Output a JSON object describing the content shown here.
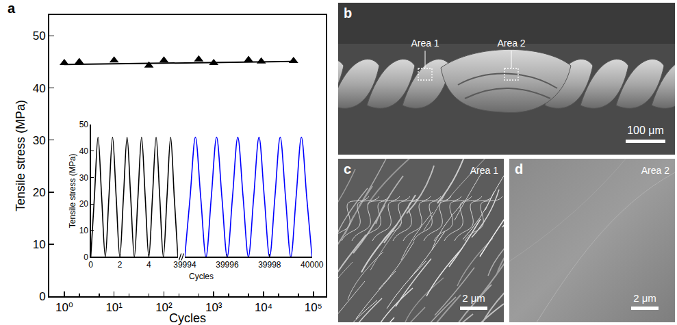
{
  "chart_data": [
    {
      "type": "scatter",
      "label": "a",
      "xlabel": "Cycles",
      "ylabel": "Tensile stress (MPa)",
      "log": "x",
      "grid": false,
      "xlim": [
        0.5,
        178000
      ],
      "xticks": [
        {
          "value": 1,
          "label": "10⁰"
        },
        {
          "value": 10,
          "label": "10¹"
        },
        {
          "value": 100,
          "label": "10²"
        },
        {
          "value": 1000,
          "label": "10³"
        },
        {
          "value": 10000,
          "label": "10⁴"
        },
        {
          "value": 100000,
          "label": "10⁵"
        }
      ],
      "ylim": [
        0,
        54
      ],
      "yticks": [
        0,
        10,
        20,
        30,
        40,
        50
      ],
      "series": [
        {
          "type": "scatter",
          "marker": "triangle-up",
          "color": "#000000",
          "x": [
            1,
            2,
            10,
            50,
            100,
            500,
            1000,
            5000,
            9000,
            40000
          ],
          "values": [
            44.8,
            45.0,
            45.3,
            44.3,
            45.3,
            45.5,
            44.8,
            45.4,
            45.1,
            45.2
          ]
        },
        {
          "type": "line",
          "line_style": "solid",
          "color": "#000000",
          "x": [
            1,
            40000
          ],
          "values": [
            44.5,
            45.1
          ]
        }
      ]
    },
    {
      "type": "line",
      "xlabel": "Cycles",
      "ylabel": "Tensile stress (MPa)",
      "grid": false,
      "xlim": [
        0,
        6
      ],
      "xticks": [
        0,
        2,
        4
      ],
      "x2lim": [
        39994,
        40000
      ],
      "x2ticks": [
        39994,
        39996,
        39998,
        40000
      ],
      "ylim": [
        0,
        50
      ],
      "yticks": [
        0,
        10,
        20,
        30,
        40,
        50
      ],
      "series": [
        {
          "type": "line",
          "line_style": "solid",
          "color": "#000000",
          "x": [
            0,
            0.25,
            0.5,
            0.75,
            1,
            1.25,
            1.5,
            1.75,
            2,
            2.25,
            2.5,
            2.75,
            3,
            3.25,
            3.5,
            3.75,
            4,
            4.25,
            4.5,
            4.75,
            5,
            5.25,
            5.5,
            5.75,
            6
          ],
          "values": [
            0,
            22.6,
            45.3,
            22.6,
            0,
            22.6,
            45.3,
            22.6,
            0,
            22.6,
            45.3,
            22.6,
            0,
            22.6,
            45.3,
            22.6,
            0,
            22.6,
            45.3,
            22.6,
            0,
            22.6,
            45.3,
            22.6,
            0
          ]
        },
        {
          "type": "line",
          "line_style": "solid",
          "color": "#0000ff",
          "axis": "x2",
          "x": [
            39994,
            39994.25,
            39994.5,
            39994.75,
            39995,
            39995.25,
            39995.5,
            39995.75,
            39996,
            39996.25,
            39996.5,
            39996.75,
            39997,
            39997.25,
            39997.5,
            39997.75,
            39998,
            39998.25,
            39998.5,
            39998.75,
            39999,
            39999.25,
            39999.5,
            39999.75,
            40000
          ],
          "values": [
            0,
            22.6,
            45.3,
            22.6,
            0,
            22.6,
            45.3,
            22.6,
            0,
            22.6,
            45.3,
            22.6,
            0,
            22.6,
            45.3,
            22.6,
            0,
            22.6,
            45.3,
            22.6,
            0,
            22.6,
            45.3,
            22.6,
            0
          ]
        }
      ]
    }
  ],
  "images": [
    {
      "label": "b",
      "areas": [
        "Area 1",
        "Area 2"
      ],
      "scale_bar": "100 μm"
    },
    {
      "label": "c",
      "caption": "Area 1",
      "scale_bar": "2 μm"
    },
    {
      "label": "d",
      "caption": "Area 2",
      "scale_bar": "2 μm"
    }
  ]
}
